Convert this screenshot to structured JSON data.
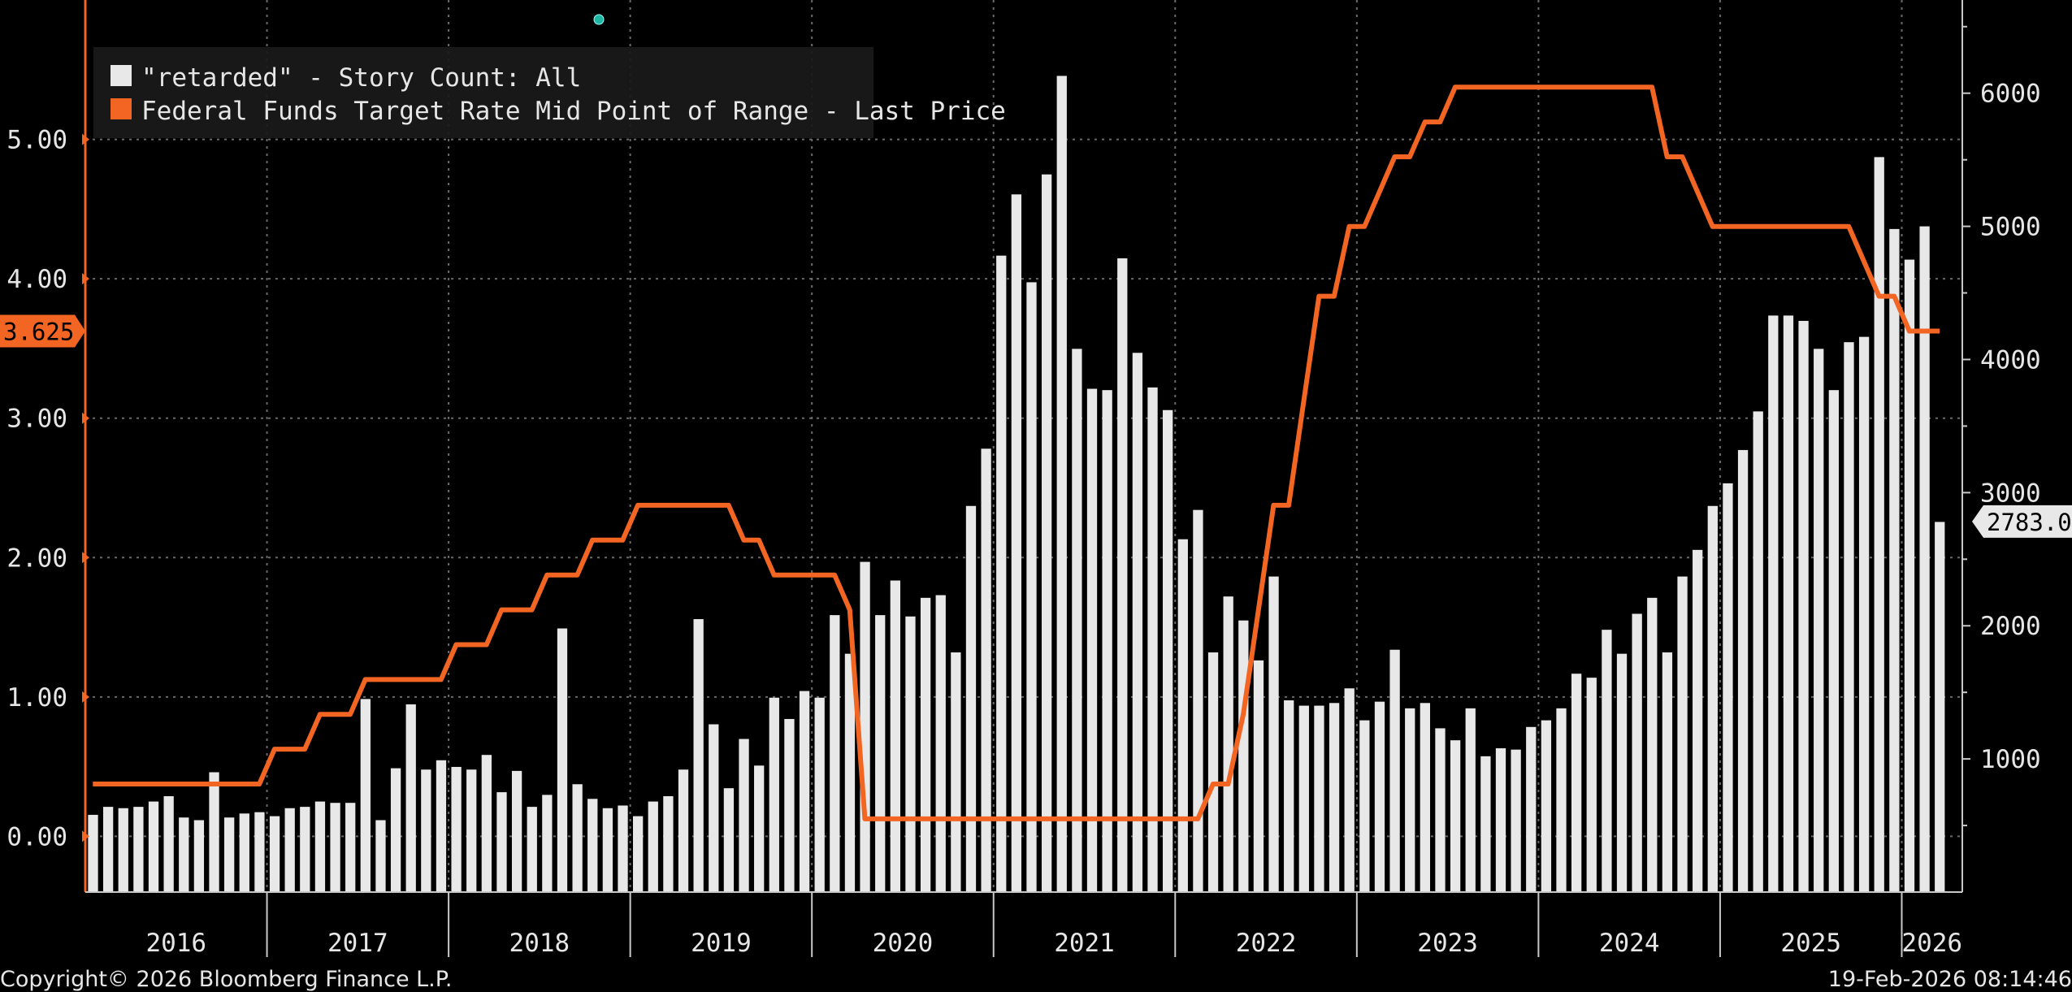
{
  "chart_data": {
    "type": "bar+line",
    "start_year": 2016,
    "years": [
      "2016",
      "2017",
      "2018",
      "2019",
      "2020",
      "2021",
      "2022",
      "2023",
      "2024",
      "2025",
      "2026"
    ],
    "left_axis": {
      "ticks": [
        "0.00",
        "1.00",
        "2.00",
        "3.00",
        "4.00",
        "5.00"
      ],
      "range": [
        -0.4,
        6.0
      ]
    },
    "right_axis": {
      "ticks": [
        "1000",
        "2000",
        "3000",
        "4000",
        "5000",
        "6000"
      ],
      "range": [
        0,
        6700
      ]
    },
    "series": [
      {
        "name": "\"retarded\" - Story Count: All",
        "axis": "right",
        "kind": "bar",
        "color": "#e8e8e8",
        "values": [
          580,
          640,
          630,
          640,
          680,
          720,
          560,
          540,
          900,
          560,
          590,
          600,
          570,
          630,
          640,
          680,
          670,
          670,
          1450,
          540,
          930,
          1410,
          920,
          990,
          940,
          920,
          1030,
          750,
          910,
          640,
          730,
          1980,
          810,
          700,
          630,
          650,
          570,
          680,
          720,
          920,
          2050,
          1260,
          780,
          1150,
          950,
          1460,
          1300,
          1510,
          1460,
          2080,
          1790,
          2480,
          2080,
          2340,
          2070,
          2210,
          2230,
          1800,
          2900,
          3330,
          4780,
          5240,
          4580,
          5390,
          6130,
          4080,
          3780,
          3770,
          4760,
          4050,
          3790,
          3620,
          2650,
          2870,
          1800,
          2220,
          2040,
          1740,
          2370,
          1440,
          1400,
          1400,
          1420,
          1530,
          1290,
          1430,
          1820,
          1380,
          1420,
          1230,
          1140,
          1380,
          1020,
          1080,
          1070,
          1240,
          1290,
          1380,
          1640,
          1610,
          1970,
          1790,
          2090,
          2210,
          1800,
          2370,
          2570,
          2900,
          3070,
          3320,
          3610,
          4330,
          4330,
          4290,
          4080,
          3770,
          4130,
          4170,
          5520,
          4980,
          4750,
          5000,
          2780
        ]
      },
      {
        "name": "Federal Funds Target Rate Mid Point of Range - Last Price",
        "axis": "left",
        "kind": "line",
        "color": "#f26522",
        "values": [
          0.375,
          0.375,
          0.375,
          0.375,
          0.375,
          0.375,
          0.375,
          0.375,
          0.375,
          0.375,
          0.375,
          0.375,
          0.625,
          0.625,
          0.625,
          0.875,
          0.875,
          0.875,
          1.125,
          1.125,
          1.125,
          1.125,
          1.125,
          1.125,
          1.375,
          1.375,
          1.375,
          1.625,
          1.625,
          1.625,
          1.875,
          1.875,
          1.875,
          2.125,
          2.125,
          2.125,
          2.375,
          2.375,
          2.375,
          2.375,
          2.375,
          2.375,
          2.375,
          2.125,
          2.125,
          1.875,
          1.875,
          1.875,
          1.875,
          1.875,
          1.625,
          0.125,
          0.125,
          0.125,
          0.125,
          0.125,
          0.125,
          0.125,
          0.125,
          0.125,
          0.125,
          0.125,
          0.125,
          0.125,
          0.125,
          0.125,
          0.125,
          0.125,
          0.125,
          0.125,
          0.125,
          0.125,
          0.125,
          0.125,
          0.375,
          0.375,
          0.875,
          1.625,
          2.375,
          2.375,
          3.125,
          3.875,
          3.875,
          4.375,
          4.375,
          4.625,
          4.875,
          4.875,
          5.125,
          5.125,
          5.375,
          5.375,
          5.375,
          5.375,
          5.375,
          5.375,
          5.375,
          5.375,
          5.375,
          5.375,
          5.375,
          5.375,
          5.375,
          5.375,
          4.875,
          4.875,
          4.625,
          4.375,
          4.375,
          4.375,
          4.375,
          4.375,
          4.375,
          4.375,
          4.375,
          4.375,
          4.375,
          4.125,
          3.875,
          3.875,
          3.625,
          3.625,
          3.625
        ]
      }
    ],
    "last_value_labels": {
      "left": "3.625",
      "right": "2783.00"
    }
  },
  "footer": {
    "copyright": "Copyright© 2026 Bloomberg Finance L.P.",
    "timestamp": "19-Feb-2026 08:14:46"
  }
}
